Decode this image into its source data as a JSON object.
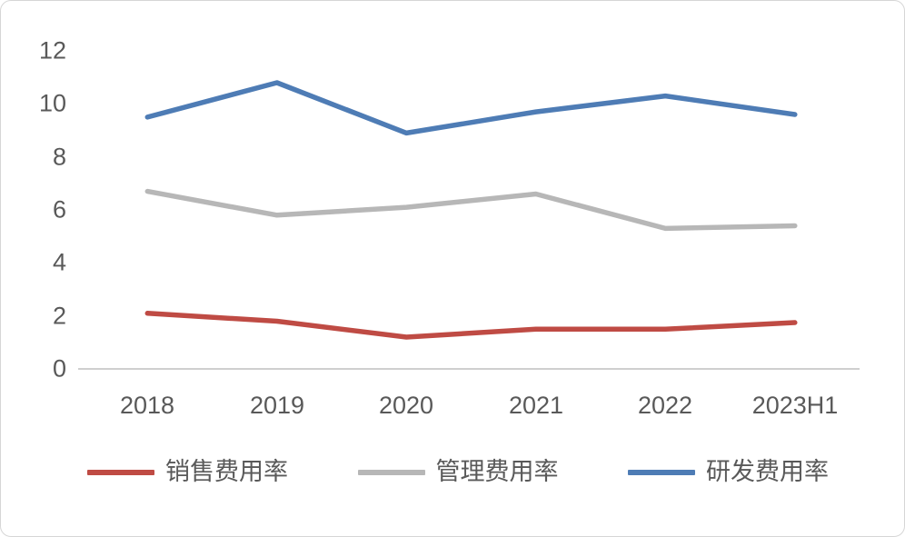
{
  "chart_data": {
    "type": "line",
    "title": "",
    "xlabel": "",
    "ylabel": "",
    "ylim": [
      0,
      12
    ],
    "grid": false,
    "legend_position": "bottom",
    "yticks": [
      12,
      10,
      8,
      6,
      4,
      2,
      0
    ],
    "categories": [
      "2018",
      "2019",
      "2020",
      "2021",
      "2022",
      "2023H1"
    ],
    "series": [
      {
        "name": "销售费用率",
        "color": "#bf4b44",
        "values": [
          2.1,
          1.8,
          1.2,
          1.5,
          1.5,
          1.75
        ]
      },
      {
        "name": "管理费用率",
        "color": "#b7b7b7",
        "values": [
          6.7,
          5.8,
          6.1,
          6.6,
          5.3,
          5.4
        ]
      },
      {
        "name": "研发费用率",
        "color": "#4e7cb5",
        "values": [
          9.5,
          10.8,
          8.9,
          9.7,
          10.3,
          9.6
        ]
      }
    ],
    "axis_color": "#bfbfbf",
    "text_color": "#595959"
  }
}
